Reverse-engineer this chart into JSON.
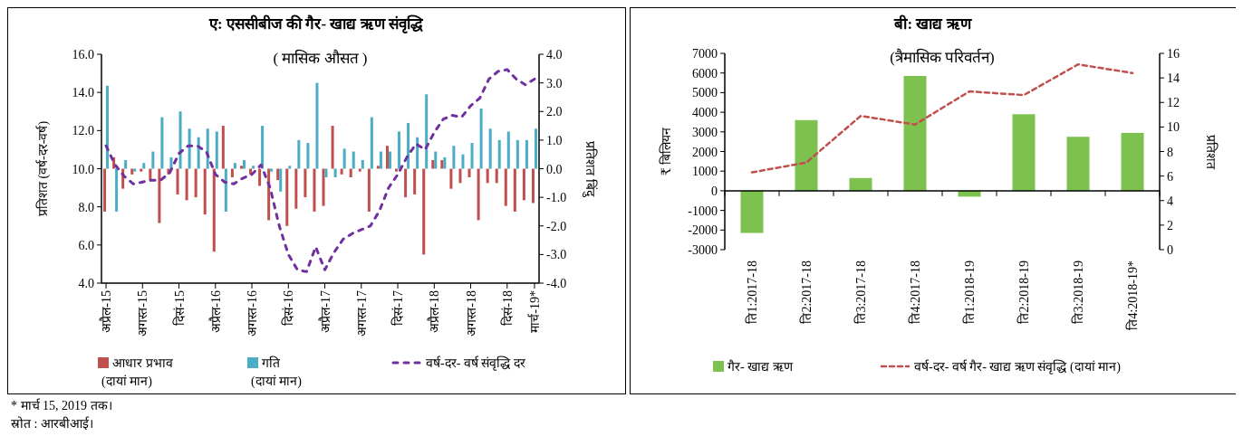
{
  "chart_data": [
    {
      "type": "bar",
      "title": "ए: एससीबीज की गैर- खाद्य ऋण संवृद्धि",
      "subtitle": "( मासिक औसत )",
      "ylabel": "प्रतिशत (वर्ष-दर-वर्ष)",
      "y2label": "प्रतिशत बिंदु",
      "categories": [
        "अप्रैल-15",
        null,
        null,
        null,
        "अगस्त-15",
        null,
        null,
        null,
        "दिसं-15",
        null,
        null,
        null,
        "अप्रैल-16",
        null,
        null,
        null,
        "अगस्त-16",
        null,
        null,
        null,
        "दिसं-16",
        null,
        null,
        null,
        "अप्रैल-17",
        null,
        null,
        null,
        "अगस्त-17",
        null,
        null,
        null,
        "दिसं-17",
        null,
        null,
        null,
        "अप्रैल-18",
        null,
        null,
        null,
        "अगस्त-18",
        null,
        null,
        null,
        "दिसं-18",
        null,
        null,
        "मार्च-19*"
      ],
      "series": [
        {
          "name": "आधार प्रभाव (दायां मान)",
          "color": "#c0504d",
          "axis": "y2",
          "values": [
            -1.5,
            0.4,
            -0.7,
            -0.2,
            -0.1,
            -0.4,
            -1.9,
            -0.2,
            -0.9,
            -1.1,
            -1.0,
            -1.6,
            -2.9,
            1.5,
            -0.3,
            0.1,
            -0.2,
            -0.6,
            -1.8,
            -0.4,
            -2.0,
            -1.4,
            -1.0,
            -1.5,
            -1.3,
            1.5,
            -0.2,
            -0.3,
            -0.1,
            -1.5,
            0.1,
            0.8,
            -0.1,
            -1.0,
            -0.9,
            -3.0,
            0.3,
            0.3,
            -0.7,
            -0.5,
            -0.3,
            -1.8,
            -0.5,
            -0.5,
            -1.3,
            -1.5,
            -1.1,
            -1.2
          ]
        },
        {
          "name": "गति (दायां मान)",
          "color": "#4bacc6",
          "axis": "y2",
          "values": [
            2.9,
            -1.5,
            0.3,
            -0.1,
            0.2,
            0.6,
            1.8,
            0.4,
            2.0,
            1.4,
            1.1,
            1.4,
            1.3,
            -1.5,
            0.2,
            0.3,
            0.1,
            1.5,
            -0.1,
            -0.8,
            0.1,
            1.0,
            0.9,
            3.0,
            -0.3,
            -0.3,
            0.7,
            0.6,
            0.3,
            1.8,
            0.6,
            0.6,
            1.3,
            1.6,
            1.1,
            2.6,
            0.6,
            0.4,
            0.8,
            0.5,
            0.9,
            2.1,
            1.4,
            1.0,
            1.3,
            1.0,
            1.0,
            1.4
          ]
        },
        {
          "name": "वर्ष-दर- वर्ष संवृद्धि दर",
          "type": "line",
          "color": "#7030a0",
          "line_style": "dashed",
          "values": [
            11.2,
            10.2,
            9.6,
            9.2,
            9.3,
            9.4,
            9.4,
            9.8,
            10.8,
            11.2,
            11.2,
            10.9,
            9.7,
            9.3,
            9.2,
            9.5,
            9.7,
            10.2,
            9.0,
            7.0,
            5.5,
            4.7,
            4.6,
            5.9,
            4.7,
            5.6,
            6.3,
            6.6,
            6.8,
            7.0,
            7.8,
            9.0,
            9.7,
            10.6,
            11.3,
            11.0,
            11.9,
            12.6,
            12.8,
            12.7,
            13.3,
            13.7,
            14.7,
            15.1,
            15.2,
            14.7,
            14.4,
            14.7
          ]
        }
      ],
      "ylim": [
        4,
        16
      ],
      "yticks": [
        {
          "value": 4,
          "label": "4.0"
        },
        {
          "value": 6,
          "label": "6.0"
        },
        {
          "value": 8,
          "label": "8.0"
        },
        {
          "value": 10,
          "label": "10.0"
        },
        {
          "value": 12,
          "label": "12.0"
        },
        {
          "value": 14,
          "label": "14.0"
        },
        {
          "value": 16,
          "label": "16.0"
        }
      ],
      "y2lim": [
        -4,
        4
      ],
      "y2ticks": [
        {
          "value": -4,
          "label": "-4.0"
        },
        {
          "value": -3,
          "label": "-3.0"
        },
        {
          "value": -2,
          "label": "-2.0"
        },
        {
          "value": -1,
          "label": "-1.0"
        },
        {
          "value": 0,
          "label": "0.0"
        },
        {
          "value": 1,
          "label": "1.0"
        },
        {
          "value": 2,
          "label": "2.0"
        },
        {
          "value": 3,
          "label": "3.0"
        },
        {
          "value": 4,
          "label": "4.0"
        }
      ],
      "legend": "bottom",
      "annotations": [
        "* मार्च 15, 2019 तक।",
        "स्रोत : आरबीआई।"
      ]
    },
    {
      "type": "bar",
      "title": "बी: खाद्य ऋण",
      "subtitle": "(त्रैमासिक परिवर्तन)",
      "ylabel": "₹ बिलियन",
      "y2label": "प्रतिशत",
      "categories": [
        "ति1:2017-18",
        "ति2:2017-18",
        "ति3:2017-18",
        "ति4:2017-18",
        "ति1:2018-19",
        "ति2:2018-19",
        "ति3:2018-19",
        "ति4:2018-19*"
      ],
      "series": [
        {
          "name": "गैर- खाद्य ऋण",
          "color": "#7dc24e",
          "values": [
            -2150,
            3600,
            650,
            5850,
            -300,
            3900,
            2750,
            2950
          ]
        },
        {
          "name": "वर्ष-दर- वर्ष गैर- खाद्य ऋण संवृद्धि (दायां मान)",
          "type": "line",
          "color": "#c0504d",
          "axis": "y2",
          "line_style": "dashed",
          "values": [
            6.3,
            7.1,
            10.9,
            10.2,
            12.9,
            12.6,
            15.1,
            14.4
          ]
        }
      ],
      "ylim": [
        -3000,
        7000
      ],
      "yticks": [
        -3000,
        -2000,
        -1000,
        0,
        1000,
        2000,
        3000,
        4000,
        5000,
        6000,
        7000
      ],
      "y2lim": [
        0,
        16
      ],
      "y2ticks": [
        0,
        2,
        4,
        6,
        8,
        10,
        12,
        14,
        16
      ],
      "legend": "bottom"
    }
  ]
}
